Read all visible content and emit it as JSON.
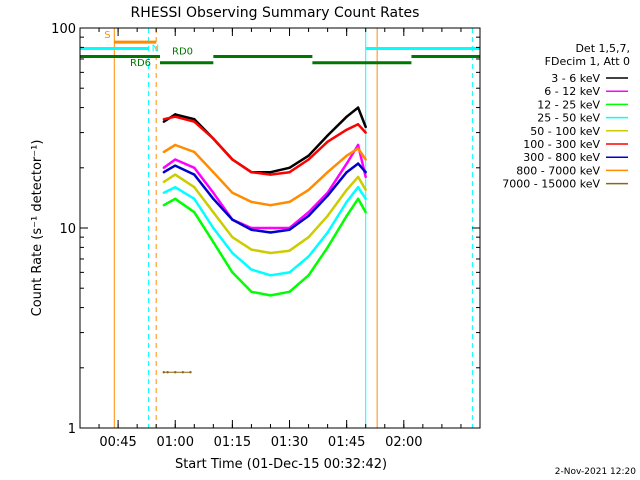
{
  "chart_data": {
    "type": "line",
    "title": "RHESSI Observing Summary Count Rates",
    "xlabel": "Start Time (01-Dec-15 00:32:42)",
    "ylabel": "Count Rate (s⁻¹ detector⁻¹)",
    "y_scale": "log",
    "ylim": [
      1,
      100
    ],
    "xlim": [
      "00:35",
      "02:20"
    ],
    "x_ticks": [
      "00:45",
      "01:00",
      "01:15",
      "01:30",
      "01:45",
      "02:00"
    ],
    "y_ticks": [
      {
        "value": 1,
        "label": "1"
      },
      {
        "value": 10,
        "label": "10"
      },
      {
        "value": 100,
        "label": "100"
      }
    ],
    "legend_header": [
      "Det 1,5,7,",
      "FDecim 1, Att 0"
    ],
    "legend_position": "right",
    "timestamp": "2-Nov-2021 12:20",
    "series": [
      {
        "name": "3 - 6 keV",
        "color": "#000000",
        "x": [
          "00:57",
          "01:00",
          "01:05",
          "01:10",
          "01:15",
          "01:20",
          "01:25",
          "01:30",
          "01:35",
          "01:40",
          "01:45",
          "01:48",
          "01:50"
        ],
        "values": [
          34,
          37,
          35,
          28,
          22,
          19,
          19,
          20,
          23,
          29,
          36,
          40,
          32
        ]
      },
      {
        "name": "6 - 12 keV",
        "color": "#ff00ff",
        "x": [
          "00:57",
          "01:00",
          "01:05",
          "01:10",
          "01:15",
          "01:20",
          "01:25",
          "01:30",
          "01:35",
          "01:40",
          "01:45",
          "01:48",
          "01:50"
        ],
        "values": [
          20,
          22,
          20,
          15,
          11,
          10,
          10,
          10,
          12,
          15,
          21,
          26,
          18
        ]
      },
      {
        "name": "12 - 25 keV",
        "color": "#00ff00",
        "x": [
          "00:57",
          "01:00",
          "01:05",
          "01:10",
          "01:15",
          "01:20",
          "01:25",
          "01:30",
          "01:35",
          "01:40",
          "01:45",
          "01:48",
          "01:50"
        ],
        "values": [
          13,
          14,
          12,
          8.5,
          6.0,
          4.8,
          4.6,
          4.8,
          5.8,
          8.0,
          11.5,
          14,
          12
        ]
      },
      {
        "name": "25 - 50 keV",
        "color": "#00ffff",
        "x": [
          "00:57",
          "01:00",
          "01:05",
          "01:10",
          "01:15",
          "01:20",
          "01:25",
          "01:30",
          "01:35",
          "01:40",
          "01:45",
          "01:48",
          "01:50"
        ],
        "values": [
          15,
          16,
          14,
          10,
          7.5,
          6.2,
          5.8,
          6.0,
          7.2,
          9.5,
          13.5,
          16,
          14
        ]
      },
      {
        "name": "50 - 100 keV",
        "color": "#cccc00",
        "x": [
          "00:57",
          "01:00",
          "01:05",
          "01:10",
          "01:15",
          "01:20",
          "01:25",
          "01:30",
          "01:35",
          "01:40",
          "01:45",
          "01:48",
          "01:50"
        ],
        "values": [
          17,
          18.5,
          16,
          12,
          9.0,
          7.8,
          7.5,
          7.7,
          9.0,
          11.5,
          15.5,
          18,
          15.5
        ]
      },
      {
        "name": "100 - 300 keV",
        "color": "#ff0000",
        "x": [
          "00:57",
          "01:00",
          "01:05",
          "01:10",
          "01:15",
          "01:20",
          "01:25",
          "01:30",
          "01:35",
          "01:40",
          "01:45",
          "01:48",
          "01:50"
        ],
        "values": [
          35,
          36,
          34,
          28,
          22,
          19,
          18.5,
          19,
          22,
          27,
          31,
          33,
          30
        ]
      },
      {
        "name": "300 - 800 keV",
        "color": "#0000cc",
        "x": [
          "00:57",
          "01:00",
          "01:05",
          "01:10",
          "01:15",
          "01:20",
          "01:25",
          "01:30",
          "01:35",
          "01:40",
          "01:45",
          "01:48",
          "01:50"
        ],
        "values": [
          19,
          20.5,
          18.5,
          14,
          11,
          9.8,
          9.5,
          9.8,
          11.5,
          14.5,
          19,
          21,
          19
        ]
      },
      {
        "name": "800 - 7000 keV",
        "color": "#ff8c00",
        "x": [
          "00:57",
          "01:00",
          "01:05",
          "01:10",
          "01:15",
          "01:20",
          "01:25",
          "01:30",
          "01:35",
          "01:40",
          "01:45",
          "01:48",
          "01:50"
        ],
        "values": [
          24,
          26,
          24,
          19,
          15,
          13.5,
          13,
          13.5,
          15.5,
          19,
          23,
          25,
          22
        ]
      },
      {
        "name": "7000 - 15000 keV",
        "color": "#8b6914",
        "x": [
          "00:57",
          "00:58",
          "01:00",
          "01:02",
          "01:04"
        ],
        "values": [
          1.9,
          1.9,
          1.9,
          1.9,
          1.9
        ]
      }
    ],
    "attenuator_bars": [
      {
        "label": "S",
        "color": "#ff8c00",
        "x_start": "00:44",
        "x_end": "00:55",
        "y": 85
      },
      {
        "label": "N",
        "color": "#00ffff",
        "x_start": "00:35",
        "x_end": "00:53",
        "y": 79
      },
      {
        "label": "",
        "color": "#00ffff",
        "x_start": "01:50",
        "x_end": "02:20",
        "y": 79
      },
      {
        "label": "RD0",
        "color": "#007700",
        "x_start": "00:35",
        "x_end": "00:56",
        "y": 72
      },
      {
        "label": "RD6",
        "color": "#007700",
        "x_start": "00:56",
        "x_end": "01:10",
        "y": 67
      },
      {
        "label": "",
        "color": "#007700",
        "x_start": "01:10",
        "x_end": "01:36",
        "y": 72
      },
      {
        "label": "",
        "color": "#007700",
        "x_start": "01:36",
        "x_end": "02:02",
        "y": 67
      },
      {
        "label": "",
        "color": "#007700",
        "x_start": "02:02",
        "x_end": "02:20",
        "y": 72
      }
    ],
    "vertical_lines": [
      {
        "x": "00:35",
        "color": "#00ffff",
        "style": "solid"
      },
      {
        "x": "00:44",
        "color": "#ff8c00",
        "style": "solid"
      },
      {
        "x": "00:53",
        "color": "#00ffff",
        "style": "dashed"
      },
      {
        "x": "00:55",
        "color": "#ff8c00",
        "style": "dashed"
      },
      {
        "x": "01:50",
        "color": "#00ffff",
        "style": "solid"
      },
      {
        "x": "01:53",
        "color": "#ff8c00",
        "style": "solid"
      },
      {
        "x": "02:18",
        "color": "#00ffff",
        "style": "dashed"
      }
    ]
  }
}
